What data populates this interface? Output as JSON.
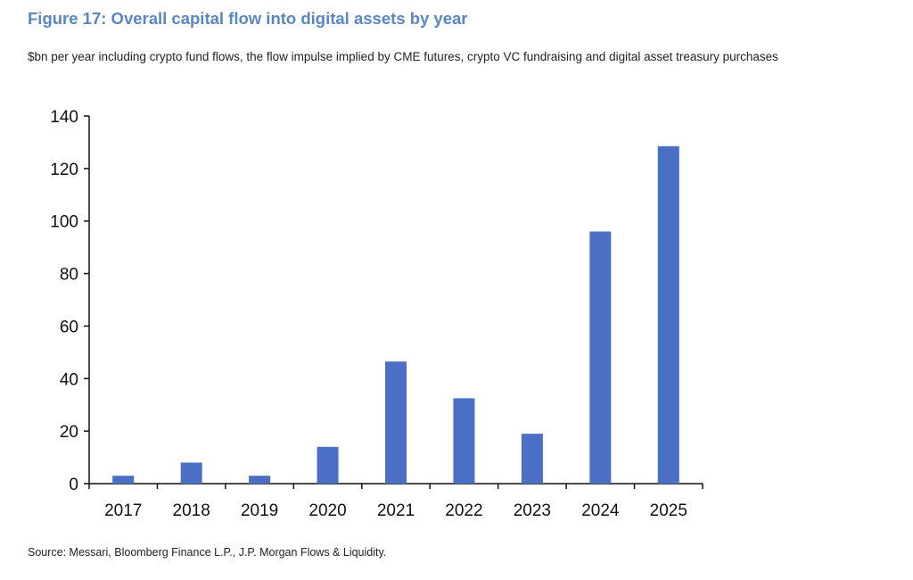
{
  "title": "Figure 17: Overall capital flow into digital assets by year",
  "subtitle": "$bn per year including crypto fund flows, the flow impulse implied by CME futures, crypto VC fundraising and digital asset treasury purchases",
  "source": "Source: Messari, Bloomberg Finance L.P., J.P. Morgan Flows & Liquidity.",
  "colors": {
    "title": "#5b86c2",
    "bar": "#4a6fc4",
    "axis": "#111111"
  },
  "chart_data": {
    "type": "bar",
    "categories": [
      "2017",
      "2018",
      "2019",
      "2020",
      "2021",
      "2022",
      "2023",
      "2024",
      "2025"
    ],
    "values": [
      3,
      8,
      3,
      14,
      46.5,
      32.5,
      19,
      96,
      128.5
    ],
    "ylim": [
      0,
      140
    ],
    "yticks": [
      0,
      20,
      40,
      60,
      80,
      100,
      120,
      140
    ],
    "xlabel": "",
    "ylabel": "",
    "grid": false,
    "legend": "none"
  }
}
